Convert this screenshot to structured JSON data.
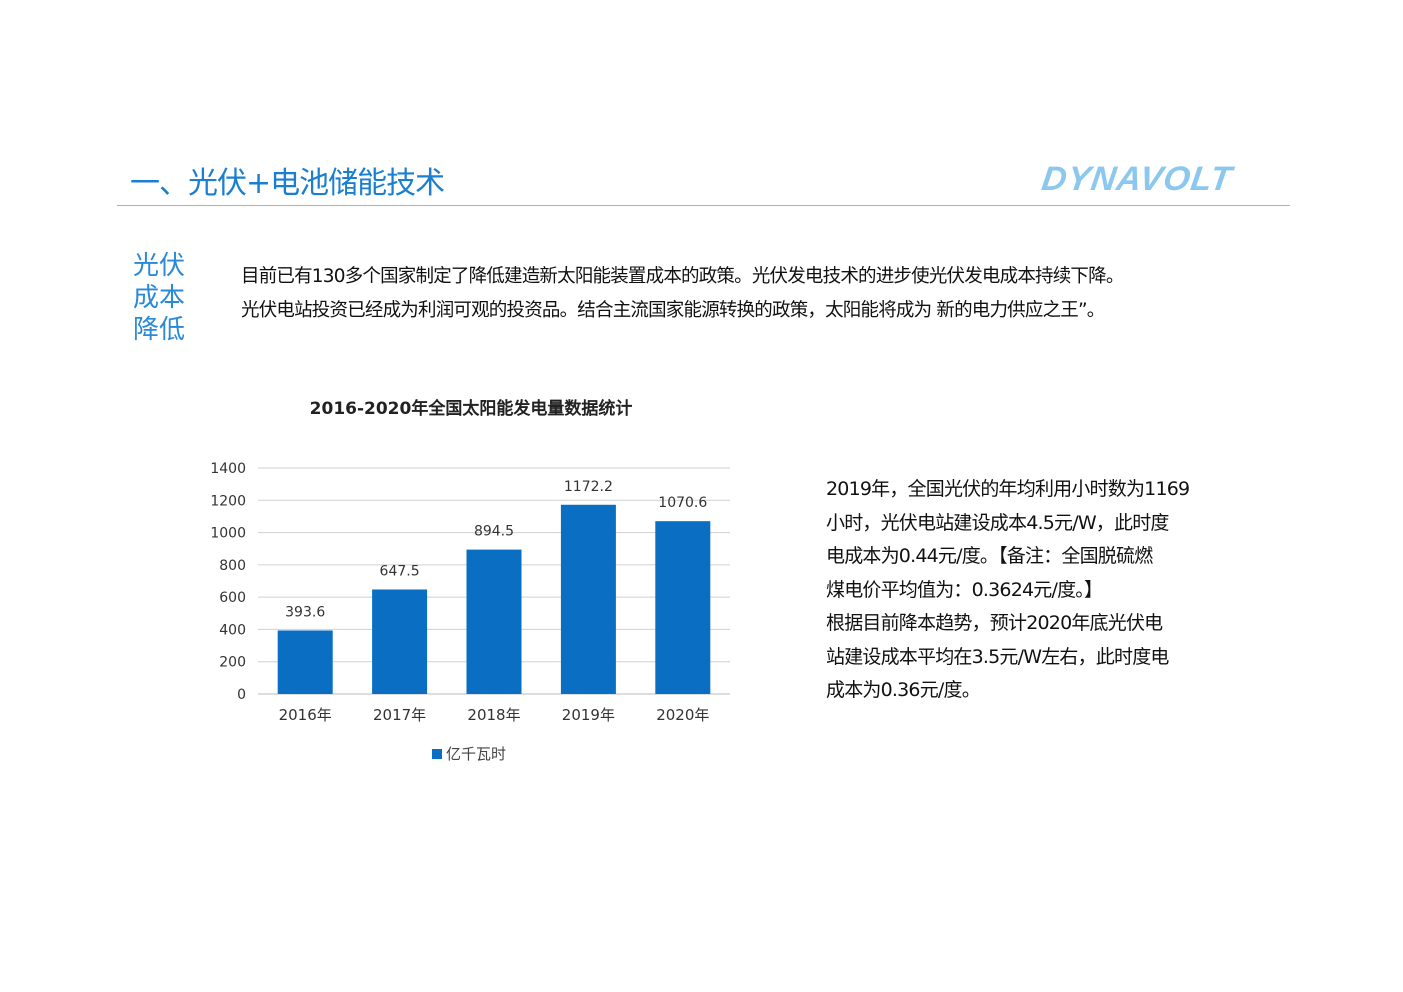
{
  "header": {
    "title": "一、光伏+电池储能技术",
    "logo_text": "DYNAVOLT"
  },
  "section": {
    "side_label": [
      "光伏",
      "成本",
      "降低"
    ],
    "intro_lines": [
      "目前已有130多个国家制定了降低建造新太阳能装置成本的政策。光伏发电技术的进步使光伏发电成本持续下降。",
      "光伏电站投资已经成为利润可观的投资品。结合主流国家能源转换的政策，太阳能将成为 新的电力供应之王”。"
    ]
  },
  "notes": {
    "lines": [
      "2019年，全国光伏的年均利用小时数为1169",
      "小时，光伏电站建设成本4.5元/W，此时度",
      "电成本为0.44元/度。【备注：全国脱硫燃",
      "煤电价平均值为：0.3624元/度。】",
      "根据目前降本趋势，预计2020年底光伏电",
      "站建设成本平均在3.5元/W左右，此时度电",
      "成本为0.36元/度。"
    ]
  },
  "chart_data": {
    "type": "bar",
    "title": "2016-2020年全国太阳能发电量数据统计",
    "categories": [
      "2016年",
      "2017年",
      "2018年",
      "2019年",
      "2020年"
    ],
    "series": [
      {
        "name": "亿千瓦时",
        "values": [
          393.6,
          647.5,
          894.5,
          1172.2,
          1070.6
        ],
        "color": "#0a6fc2"
      }
    ],
    "data_labels": [
      "393.6",
      "647.5",
      "894.5",
      "1172.2",
      "1070.6"
    ],
    "ylim": [
      0,
      1400
    ],
    "yticks": [
      "0",
      "200",
      "400",
      "600",
      "800",
      "1000",
      "1200",
      "1400"
    ],
    "grid": true,
    "legend": "bottom"
  }
}
